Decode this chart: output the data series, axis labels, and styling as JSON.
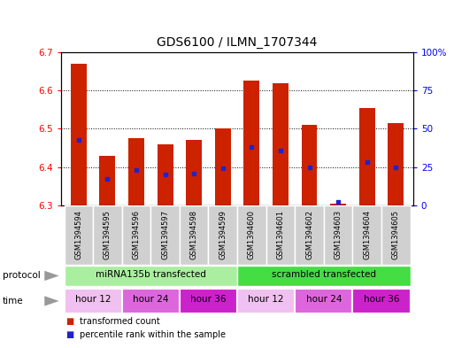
{
  "title": "GDS6100 / ILMN_1707344",
  "samples": [
    "GSM1394594",
    "GSM1394595",
    "GSM1394596",
    "GSM1394597",
    "GSM1394598",
    "GSM1394599",
    "GSM1394600",
    "GSM1394601",
    "GSM1394602",
    "GSM1394603",
    "GSM1394604",
    "GSM1394605"
  ],
  "bar_bottom": 6.3,
  "bar_top": [
    6.67,
    6.43,
    6.475,
    6.46,
    6.47,
    6.5,
    6.625,
    6.62,
    6.51,
    6.305,
    6.555,
    6.515
  ],
  "percentile": [
    43,
    17,
    23,
    20,
    21,
    24,
    38,
    36,
    25,
    2,
    28,
    25
  ],
  "ylim": [
    6.3,
    6.7
  ],
  "yticks_left": [
    6.3,
    6.4,
    6.5,
    6.6,
    6.7
  ],
  "yticks_right": [
    0,
    25,
    50,
    75,
    100
  ],
  "bar_color": "#cc2200",
  "dot_color": "#2222cc",
  "sample_box_color": "#d0d0d0",
  "protocol_groups": [
    {
      "label": "miRNA135b transfected",
      "start": 0,
      "end": 6,
      "color": "#aaeea0"
    },
    {
      "label": "scrambled transfected",
      "start": 6,
      "end": 12,
      "color": "#44dd44"
    }
  ],
  "time_groups": [
    {
      "label": "hour 12",
      "start": 0,
      "end": 2,
      "color": "#f0c0f0"
    },
    {
      "label": "hour 24",
      "start": 2,
      "end": 4,
      "color": "#dd66dd"
    },
    {
      "label": "hour 36",
      "start": 4,
      "end": 6,
      "color": "#cc22cc"
    },
    {
      "label": "hour 12",
      "start": 6,
      "end": 8,
      "color": "#f0c0f0"
    },
    {
      "label": "hour 24",
      "start": 8,
      "end": 10,
      "color": "#dd66dd"
    },
    {
      "label": "hour 36",
      "start": 10,
      "end": 12,
      "color": "#cc22cc"
    }
  ],
  "figsize": [
    5.13,
    3.93
  ],
  "dpi": 100
}
